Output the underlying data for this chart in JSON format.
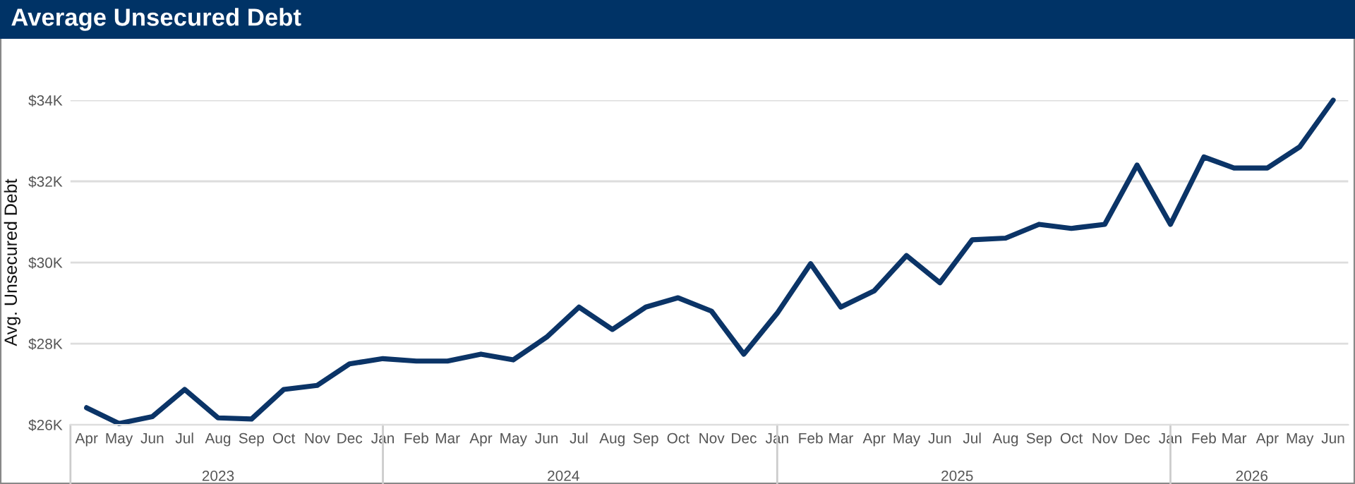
{
  "chart_data": {
    "type": "line",
    "title": "Average Unsecured Debt",
    "ylabel": "Avg. Unsecured Debt",
    "x": [
      "2023-04",
      "2023-05",
      "2023-06",
      "2023-07",
      "2023-08",
      "2023-09",
      "2023-10",
      "2023-11",
      "2023-12",
      "2024-01",
      "2024-02",
      "2024-03",
      "2024-04",
      "2024-05",
      "2024-06",
      "2024-07",
      "2024-08",
      "2024-09",
      "2024-10",
      "2024-11",
      "2024-12",
      "2025-01",
      "2025-02",
      "2025-03",
      "2025-04",
      "2025-05",
      "2025-06",
      "2025-07",
      "2025-08",
      "2025-09",
      "2025-10",
      "2025-11",
      "2025-12",
      "2026-01",
      "2026-02",
      "2026-03",
      "2026-04",
      "2026-05",
      "2026-06"
    ],
    "series": [
      {
        "color": "#0b3467",
        "values": [
          26420,
          26030,
          26200,
          26870,
          26170,
          26140,
          26870,
          26970,
          27500,
          27630,
          27570,
          27570,
          27740,
          27600,
          28160,
          28900,
          28350,
          28900,
          29130,
          28800,
          27740,
          28750,
          29970,
          28900,
          29300,
          30170,
          29500,
          30560,
          30600,
          30940,
          30840,
          30940,
          32400,
          30940,
          32600,
          32330,
          32330,
          32850,
          34000
        ]
      }
    ],
    "xlim": [
      "2023-03-17",
      "2026-06-15"
    ],
    "xticks": [
      {
        "value": "2023-04",
        "label": "Apr"
      },
      {
        "value": "2023-05",
        "label": "May"
      },
      {
        "value": "2023-06",
        "label": "Jun"
      },
      {
        "value": "2023-07",
        "label": "Jul"
      },
      {
        "value": "2023-08",
        "label": "Aug"
      },
      {
        "value": "2023-09",
        "label": "Sep"
      },
      {
        "value": "2023-10",
        "label": "Oct"
      },
      {
        "value": "2023-11",
        "label": "Nov"
      },
      {
        "value": "2023-12",
        "label": "Dec"
      },
      {
        "value": "2024-01",
        "label": "Jan"
      },
      {
        "value": "2024-02",
        "label": "Feb"
      },
      {
        "value": "2024-03",
        "label": "Mar"
      },
      {
        "value": "2024-04",
        "label": "Apr"
      },
      {
        "value": "2024-05",
        "label": "May"
      },
      {
        "value": "2024-06",
        "label": "Jun"
      },
      {
        "value": "2024-07",
        "label": "Jul"
      },
      {
        "value": "2024-08",
        "label": "Aug"
      },
      {
        "value": "2024-09",
        "label": "Sep"
      },
      {
        "value": "2024-10",
        "label": "Oct"
      },
      {
        "value": "2024-11",
        "label": "Nov"
      },
      {
        "value": "2024-12",
        "label": "Dec"
      },
      {
        "value": "2025-01",
        "label": "Jan"
      },
      {
        "value": "2025-02",
        "label": "Feb"
      },
      {
        "value": "2025-03",
        "label": "Mar"
      },
      {
        "value": "2025-04",
        "label": "Apr"
      },
      {
        "value": "2025-05",
        "label": "May"
      },
      {
        "value": "2025-06",
        "label": "Jun"
      },
      {
        "value": "2025-07",
        "label": "Jul"
      },
      {
        "value": "2025-08",
        "label": "Aug"
      },
      {
        "value": "2025-09",
        "label": "Sep"
      },
      {
        "value": "2025-10",
        "label": "Oct"
      },
      {
        "value": "2025-11",
        "label": "Nov"
      },
      {
        "value": "2025-12",
        "label": "Dec"
      },
      {
        "value": "2026-01",
        "label": "Jan"
      },
      {
        "value": "2026-02",
        "label": "Feb"
      },
      {
        "value": "2026-03",
        "label": "Mar"
      },
      {
        "value": "2026-04",
        "label": "Apr"
      },
      {
        "value": "2026-05",
        "label": "May"
      },
      {
        "value": "2026-06",
        "label": "Jun"
      }
    ],
    "annotations": [
      "2023",
      "2024",
      "2025",
      "2026"
    ],
    "ylim": [
      26000,
      34000
    ],
    "yticks": [
      {
        "value": 26000,
        "label": "$26K"
      },
      {
        "value": 28000,
        "label": "$28K"
      },
      {
        "value": 30000,
        "label": "$30K"
      },
      {
        "value": 32000,
        "label": "$32K"
      },
      {
        "value": 34000,
        "label": "$34K"
      }
    ],
    "grid": "y",
    "marker": "none",
    "line_style": "solid",
    "legend": false
  }
}
